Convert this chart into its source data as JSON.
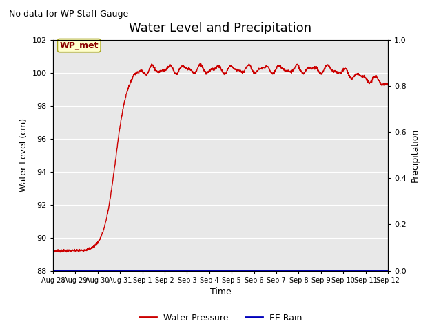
{
  "title": "Water Level and Precipitation",
  "title_fontsize": 13,
  "suptitle": "No data for WP Staff Gauge",
  "suptitle_fontsize": 9,
  "xlabel": "Time",
  "ylabel": "Water Level (cm)",
  "ylabel2": "Precipitation",
  "ylim": [
    88,
    102
  ],
  "ylim2": [
    0.0,
    1.0
  ],
  "yticks": [
    88,
    90,
    92,
    94,
    96,
    98,
    100,
    102
  ],
  "yticks2": [
    0.0,
    0.2,
    0.4,
    0.6,
    0.8,
    1.0
  ],
  "bg_color": "#e8e8e8",
  "line_color": "#cc0000",
  "line2_color": "#0000bb",
  "legend_label1": "Water Pressure",
  "legend_label2": "EE Rain",
  "annotation_text": "WP_met",
  "xtick_labels": [
    "Aug 28",
    "Aug 29",
    "Aug 30",
    "Aug 31",
    "Sep 1",
    "Sep 2",
    "Sep 3",
    "Sep 4",
    "Sep 5",
    "Sep 6",
    "Sep 7",
    "Sep 8",
    "Sep 9",
    "Sep 10",
    "Sep 11",
    "Sep 12"
  ]
}
